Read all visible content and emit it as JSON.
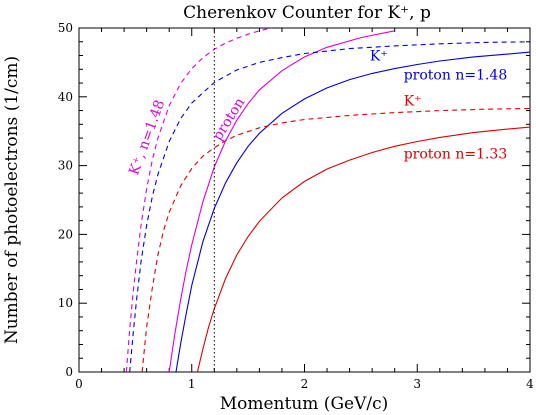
{
  "chart_data": {
    "type": "line",
    "title": "Cherenkov Counter for K⁺, p",
    "xlabel": "Momentum (GeV/c)",
    "ylabel": "Number of photoelectrons (1/cm)",
    "xlim": [
      0,
      4
    ],
    "ylim": [
      0,
      50
    ],
    "x_ticks": [
      0,
      1,
      2,
      3,
      4
    ],
    "y_ticks": [
      0,
      10,
      20,
      30,
      40,
      50
    ],
    "grid": false,
    "legend": "none",
    "series": [
      {
        "name": "K⁺",
        "index": "1.48",
        "color": "#dd00dd",
        "dash": "5,4",
        "x": [
          0.42,
          0.45,
          0.48,
          0.51,
          0.55,
          0.6,
          0.65,
          0.7,
          0.8,
          0.9,
          1.0,
          1.1,
          1.2,
          1.3,
          1.4,
          1.5,
          1.6,
          1.75
        ],
        "y": [
          0,
          6.2,
          11.5,
          16.0,
          21.3,
          26.6,
          30.8,
          34.0,
          38.7,
          41.9,
          44.1,
          45.7,
          46.9,
          47.8,
          48.5,
          49.1,
          49.6,
          50.2
        ]
      },
      {
        "name": "proton",
        "index": "1.48",
        "color": "#dd00dd",
        "dash": "",
        "x": [
          0.8,
          0.85,
          0.9,
          0.95,
          1.0,
          1.1,
          1.2,
          1.3,
          1.4,
          1.5,
          1.6,
          1.8,
          2.0,
          2.2,
          2.5,
          2.8
        ],
        "y": [
          0,
          5.5,
          10.4,
          14.7,
          18.5,
          24.8,
          29.8,
          33.6,
          36.6,
          39.0,
          41.0,
          43.8,
          45.8,
          47.2,
          48.6,
          49.6
        ]
      },
      {
        "name": "K⁺",
        "index": "1.33",
        "color": "#0000dd",
        "dash": "5,4",
        "x": [
          0.45,
          0.48,
          0.51,
          0.55,
          0.6,
          0.65,
          0.7,
          0.8,
          0.9,
          1.0,
          1.2,
          1.4,
          1.6,
          1.8,
          2.0,
          2.4,
          2.8,
          3.2,
          3.6,
          4.0
        ],
        "y": [
          0,
          5.5,
          10.4,
          16.0,
          21.3,
          25.5,
          28.7,
          33.5,
          36.8,
          39.1,
          42.1,
          43.9,
          45.0,
          45.7,
          46.3,
          47.0,
          47.4,
          47.7,
          47.9,
          48.0
        ]
      },
      {
        "name": "proton",
        "index": "1.48",
        "color": "#0000dd",
        "dash": "",
        "x": [
          0.86,
          0.9,
          0.95,
          1.0,
          1.1,
          1.2,
          1.3,
          1.4,
          1.5,
          1.6,
          1.8,
          2.0,
          2.2,
          2.4,
          2.6,
          2.8,
          3.0,
          3.2,
          3.5,
          3.8,
          4.0
        ],
        "y": [
          0,
          4.0,
          8.4,
          12.6,
          19.0,
          23.8,
          27.5,
          30.4,
          32.8,
          34.7,
          37.6,
          39.7,
          41.3,
          42.5,
          43.4,
          44.1,
          44.7,
          45.2,
          45.8,
          46.2,
          46.5
        ]
      },
      {
        "name": "K⁺",
        "index": "1.33",
        "color": "#dd0000",
        "dash": "5,4",
        "x": [
          0.56,
          0.6,
          0.65,
          0.7,
          0.75,
          0.8,
          0.9,
          1.0,
          1.1,
          1.2,
          1.3,
          1.4,
          1.6,
          1.8,
          2.0,
          2.4,
          2.8,
          3.2,
          3.6,
          4.0
        ],
        "y": [
          0,
          6.5,
          12.2,
          17.0,
          20.6,
          23.2,
          27.0,
          29.6,
          31.4,
          32.6,
          33.6,
          34.4,
          35.5,
          36.2,
          36.7,
          37.3,
          37.7,
          38.0,
          38.2,
          38.3
        ]
      },
      {
        "name": "proton",
        "index": "1.33",
        "color": "#dd0000",
        "dash": "",
        "x": [
          1.05,
          1.1,
          1.15,
          1.2,
          1.3,
          1.4,
          1.5,
          1.6,
          1.8,
          2.0,
          2.2,
          2.4,
          2.6,
          2.8,
          3.0,
          3.2,
          3.5,
          3.8,
          4.0
        ],
        "y": [
          0,
          3.4,
          6.6,
          9.2,
          13.6,
          17.0,
          19.7,
          21.9,
          25.3,
          27.7,
          29.5,
          30.8,
          31.9,
          32.8,
          33.5,
          34.1,
          34.8,
          35.3,
          35.6
        ]
      }
    ],
    "vline": {
      "x": 1.2,
      "style": "dotted",
      "color": "#000000"
    },
    "annotations": [
      {
        "text": "K⁺",
        "color": "#0000dd",
        "x": 2.58,
        "y": 45.3,
        "rotate": 0
      },
      {
        "text": "proton n=1.48",
        "color": "#0000dd",
        "x": 2.88,
        "y": 42.5,
        "rotate": 0
      },
      {
        "text": "K⁺",
        "color": "#dd0000",
        "x": 2.88,
        "y": 38.7,
        "rotate": 0
      },
      {
        "text": "proton n=1.33",
        "color": "#dd0000",
        "x": 2.88,
        "y": 31.0,
        "rotate": 0
      },
      {
        "text": "K⁺, n=1.48",
        "color": "#dd00dd",
        "x": 0.52,
        "y": 28.5,
        "rotate": -70
      },
      {
        "text": "proton",
        "color": "#dd00dd",
        "x": 1.25,
        "y": 33.5,
        "rotate": -58
      }
    ]
  }
}
